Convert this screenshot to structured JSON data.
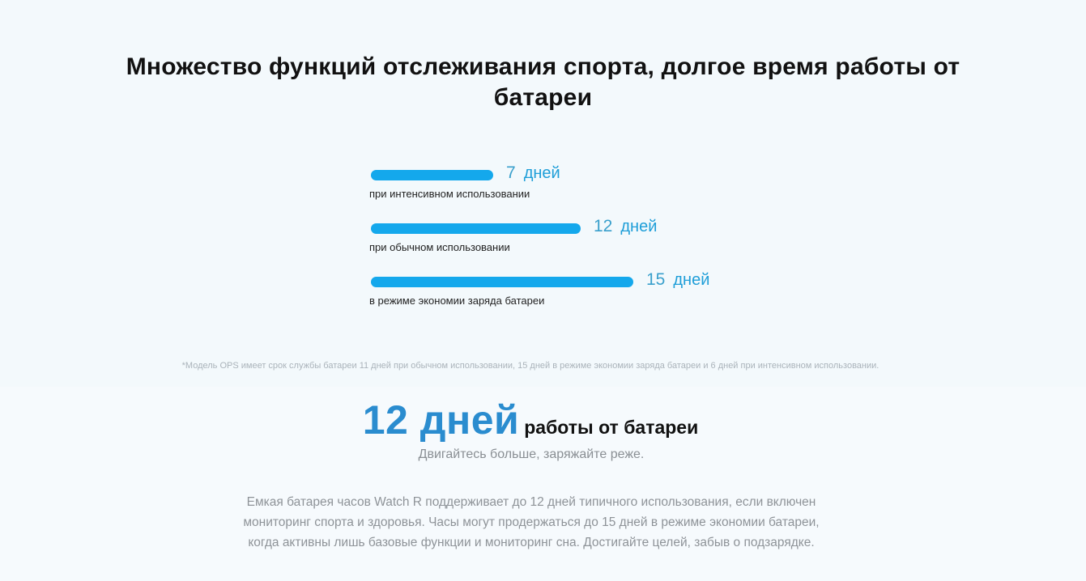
{
  "headline": {
    "line1": "Множество функций отслеживания спорта, долгое время работы от",
    "line2": "батареи"
  },
  "battery_bars": [
    {
      "number": "7",
      "unit": "дней",
      "caption": "при интенсивном использовании",
      "days": 7
    },
    {
      "number": "12",
      "unit": "дней",
      "caption": "при обычном использовании",
      "days": 12
    },
    {
      "number": "15",
      "unit": "дней",
      "caption": "в режиме экономии заряда батареи",
      "days": 15
    }
  ],
  "footnote": "*Модель OPS имеет срок службы батареи 11 дней при обычном использовании, 15 дней в режиме экономии заряда батареи и 6 дней при интенсивном использовании.",
  "highlight": {
    "number": "12 дней",
    "text": "работы от батареи"
  },
  "subtitle": "Двигайтесь больше, заряжайте реже.",
  "paragraph": {
    "line1": "Емкая батарея часов Watch R поддерживает до 12 дней типичного использования, если включен",
    "line2": "мониторинг спорта и здоровья. Часы могут продержаться до 15 дней в режиме экономии батареи,",
    "line3": "когда активны лишь базовые функции и мониторинг сна. Достигайте целей, забыв о подзарядке."
  },
  "colors": {
    "background": "#f3f9fc",
    "bar": "#14a8ec",
    "accent_number": "#2a8ccf"
  }
}
